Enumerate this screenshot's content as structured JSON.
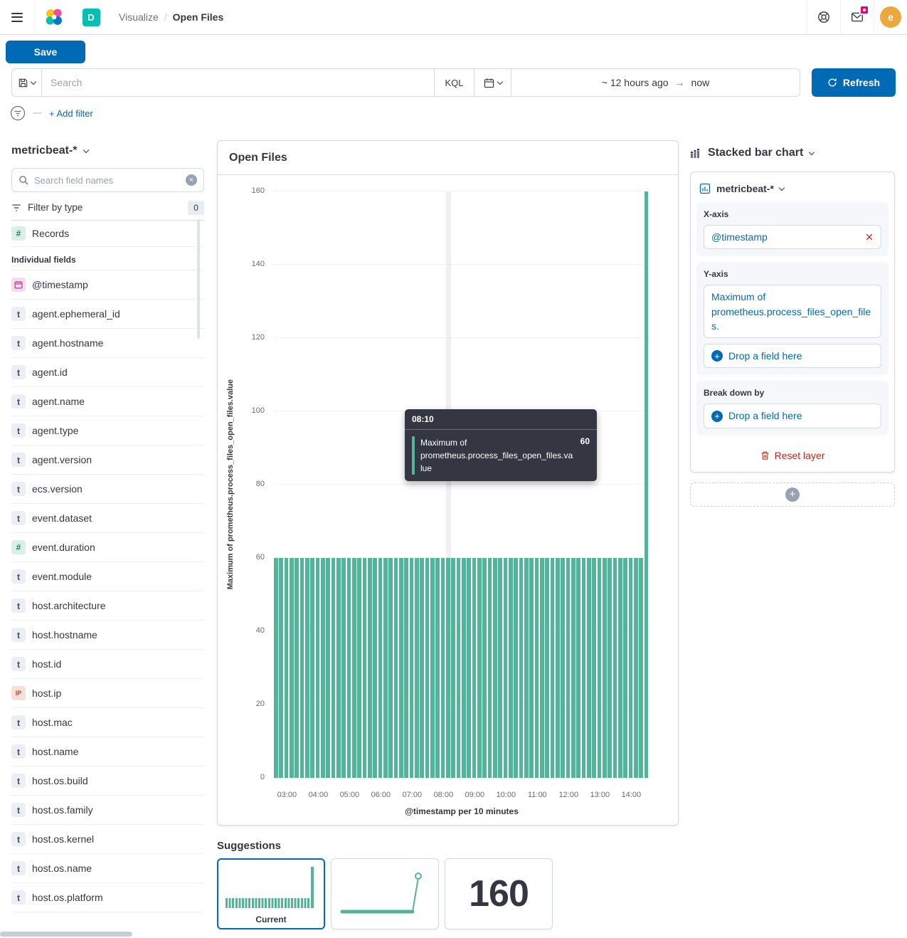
{
  "colors": {
    "primary": "#006BB4",
    "bar": "#54B399",
    "danger": "#BD271E",
    "dark": "#343741"
  },
  "top_nav": {
    "space_badge": "D",
    "breadcrumbs": [
      "Visualize",
      "Open Files"
    ],
    "avatar_initial": "e"
  },
  "toolbar": {
    "save_label": "Save"
  },
  "query_bar": {
    "search_placeholder": "Search",
    "kql_label": "KQL",
    "time_from": "~ 12 hours ago",
    "time_to": "now",
    "refresh_label": "Refresh"
  },
  "filter_bar": {
    "add_filter": "+ Add filter"
  },
  "sidebar": {
    "index_pattern": "metricbeat-*",
    "search_placeholder": "Search field names",
    "filter_by_type": "Filter by type",
    "filter_count": "0",
    "records_field": "Records",
    "section_label": "Individual fields",
    "fields": [
      {
        "name": "@timestamp",
        "type": "date"
      },
      {
        "name": "agent.ephemeral_id",
        "type": "string"
      },
      {
        "name": "agent.hostname",
        "type": "string"
      },
      {
        "name": "agent.id",
        "type": "string"
      },
      {
        "name": "agent.name",
        "type": "string"
      },
      {
        "name": "agent.type",
        "type": "string"
      },
      {
        "name": "agent.version",
        "type": "string"
      },
      {
        "name": "ecs.version",
        "type": "string"
      },
      {
        "name": "event.dataset",
        "type": "string"
      },
      {
        "name": "event.duration",
        "type": "number"
      },
      {
        "name": "event.module",
        "type": "string"
      },
      {
        "name": "host.architecture",
        "type": "string"
      },
      {
        "name": "host.hostname",
        "type": "string"
      },
      {
        "name": "host.id",
        "type": "string"
      },
      {
        "name": "host.ip",
        "type": "ip"
      },
      {
        "name": "host.mac",
        "type": "string"
      },
      {
        "name": "host.name",
        "type": "string"
      },
      {
        "name": "host.os.build",
        "type": "string"
      },
      {
        "name": "host.os.family",
        "type": "string"
      },
      {
        "name": "host.os.kernel",
        "type": "string"
      },
      {
        "name": "host.os.name",
        "type": "string"
      },
      {
        "name": "host.os.platform",
        "type": "string"
      }
    ]
  },
  "panel": {
    "title": "Open Files"
  },
  "chart_data": {
    "type": "bar",
    "title": "Open Files",
    "ylabel": "Maximum of prometheus.process_files_open_files.value",
    "xlabel": "@timestamp per 10 minutes",
    "ylim": [
      0,
      160
    ],
    "y_ticks": [
      0,
      20,
      40,
      60,
      80,
      100,
      120,
      140,
      160
    ],
    "bar_interval_minutes": 10,
    "x_ticks": [
      {
        "label": "03:00",
        "index": 2
      },
      {
        "label": "04:00",
        "index": 8
      },
      {
        "label": "05:00",
        "index": 14
      },
      {
        "label": "06:00",
        "index": 20
      },
      {
        "label": "07:00",
        "index": 26
      },
      {
        "label": "08:00",
        "index": 32
      },
      {
        "label": "09:00",
        "index": 38
      },
      {
        "label": "10:00",
        "index": 44
      },
      {
        "label": "11:00",
        "index": 50
      },
      {
        "label": "12:00",
        "index": 56
      },
      {
        "label": "13:00",
        "index": 62
      },
      {
        "label": "14:00",
        "index": 68
      }
    ],
    "hovered_index": 33,
    "values": [
      60,
      60,
      60,
      60,
      60,
      60,
      60,
      60,
      60,
      60,
      60,
      60,
      60,
      60,
      60,
      60,
      60,
      60,
      60,
      60,
      60,
      60,
      60,
      60,
      60,
      60,
      60,
      60,
      60,
      60,
      60,
      60,
      60,
      60,
      60,
      60,
      60,
      60,
      60,
      60,
      60,
      60,
      60,
      60,
      60,
      60,
      60,
      60,
      60,
      60,
      60,
      60,
      60,
      60,
      60,
      60,
      60,
      60,
      60,
      60,
      60,
      60,
      60,
      60,
      60,
      60,
      60,
      60,
      60,
      60,
      60,
      160
    ]
  },
  "tooltip": {
    "header": "08:10",
    "series_label": "Maximum of prometheus.process_files_open_files.value",
    "value": "60"
  },
  "config": {
    "chart_type_label": "Stacked bar chart",
    "layer_source": "metricbeat-*",
    "x_axis": {
      "label": "X-axis",
      "value": "@timestamp"
    },
    "y_axis": {
      "label": "Y-axis",
      "value": "Maximum of prometheus.process_files_open_files.",
      "drop_label": "Drop a field here"
    },
    "breakdown": {
      "label": "Break down by",
      "drop_label": "Drop a field here"
    },
    "reset_layer_label": "Reset layer"
  },
  "suggestions": {
    "title": "Suggestions",
    "current_label": "Current",
    "metric_value": "160"
  }
}
